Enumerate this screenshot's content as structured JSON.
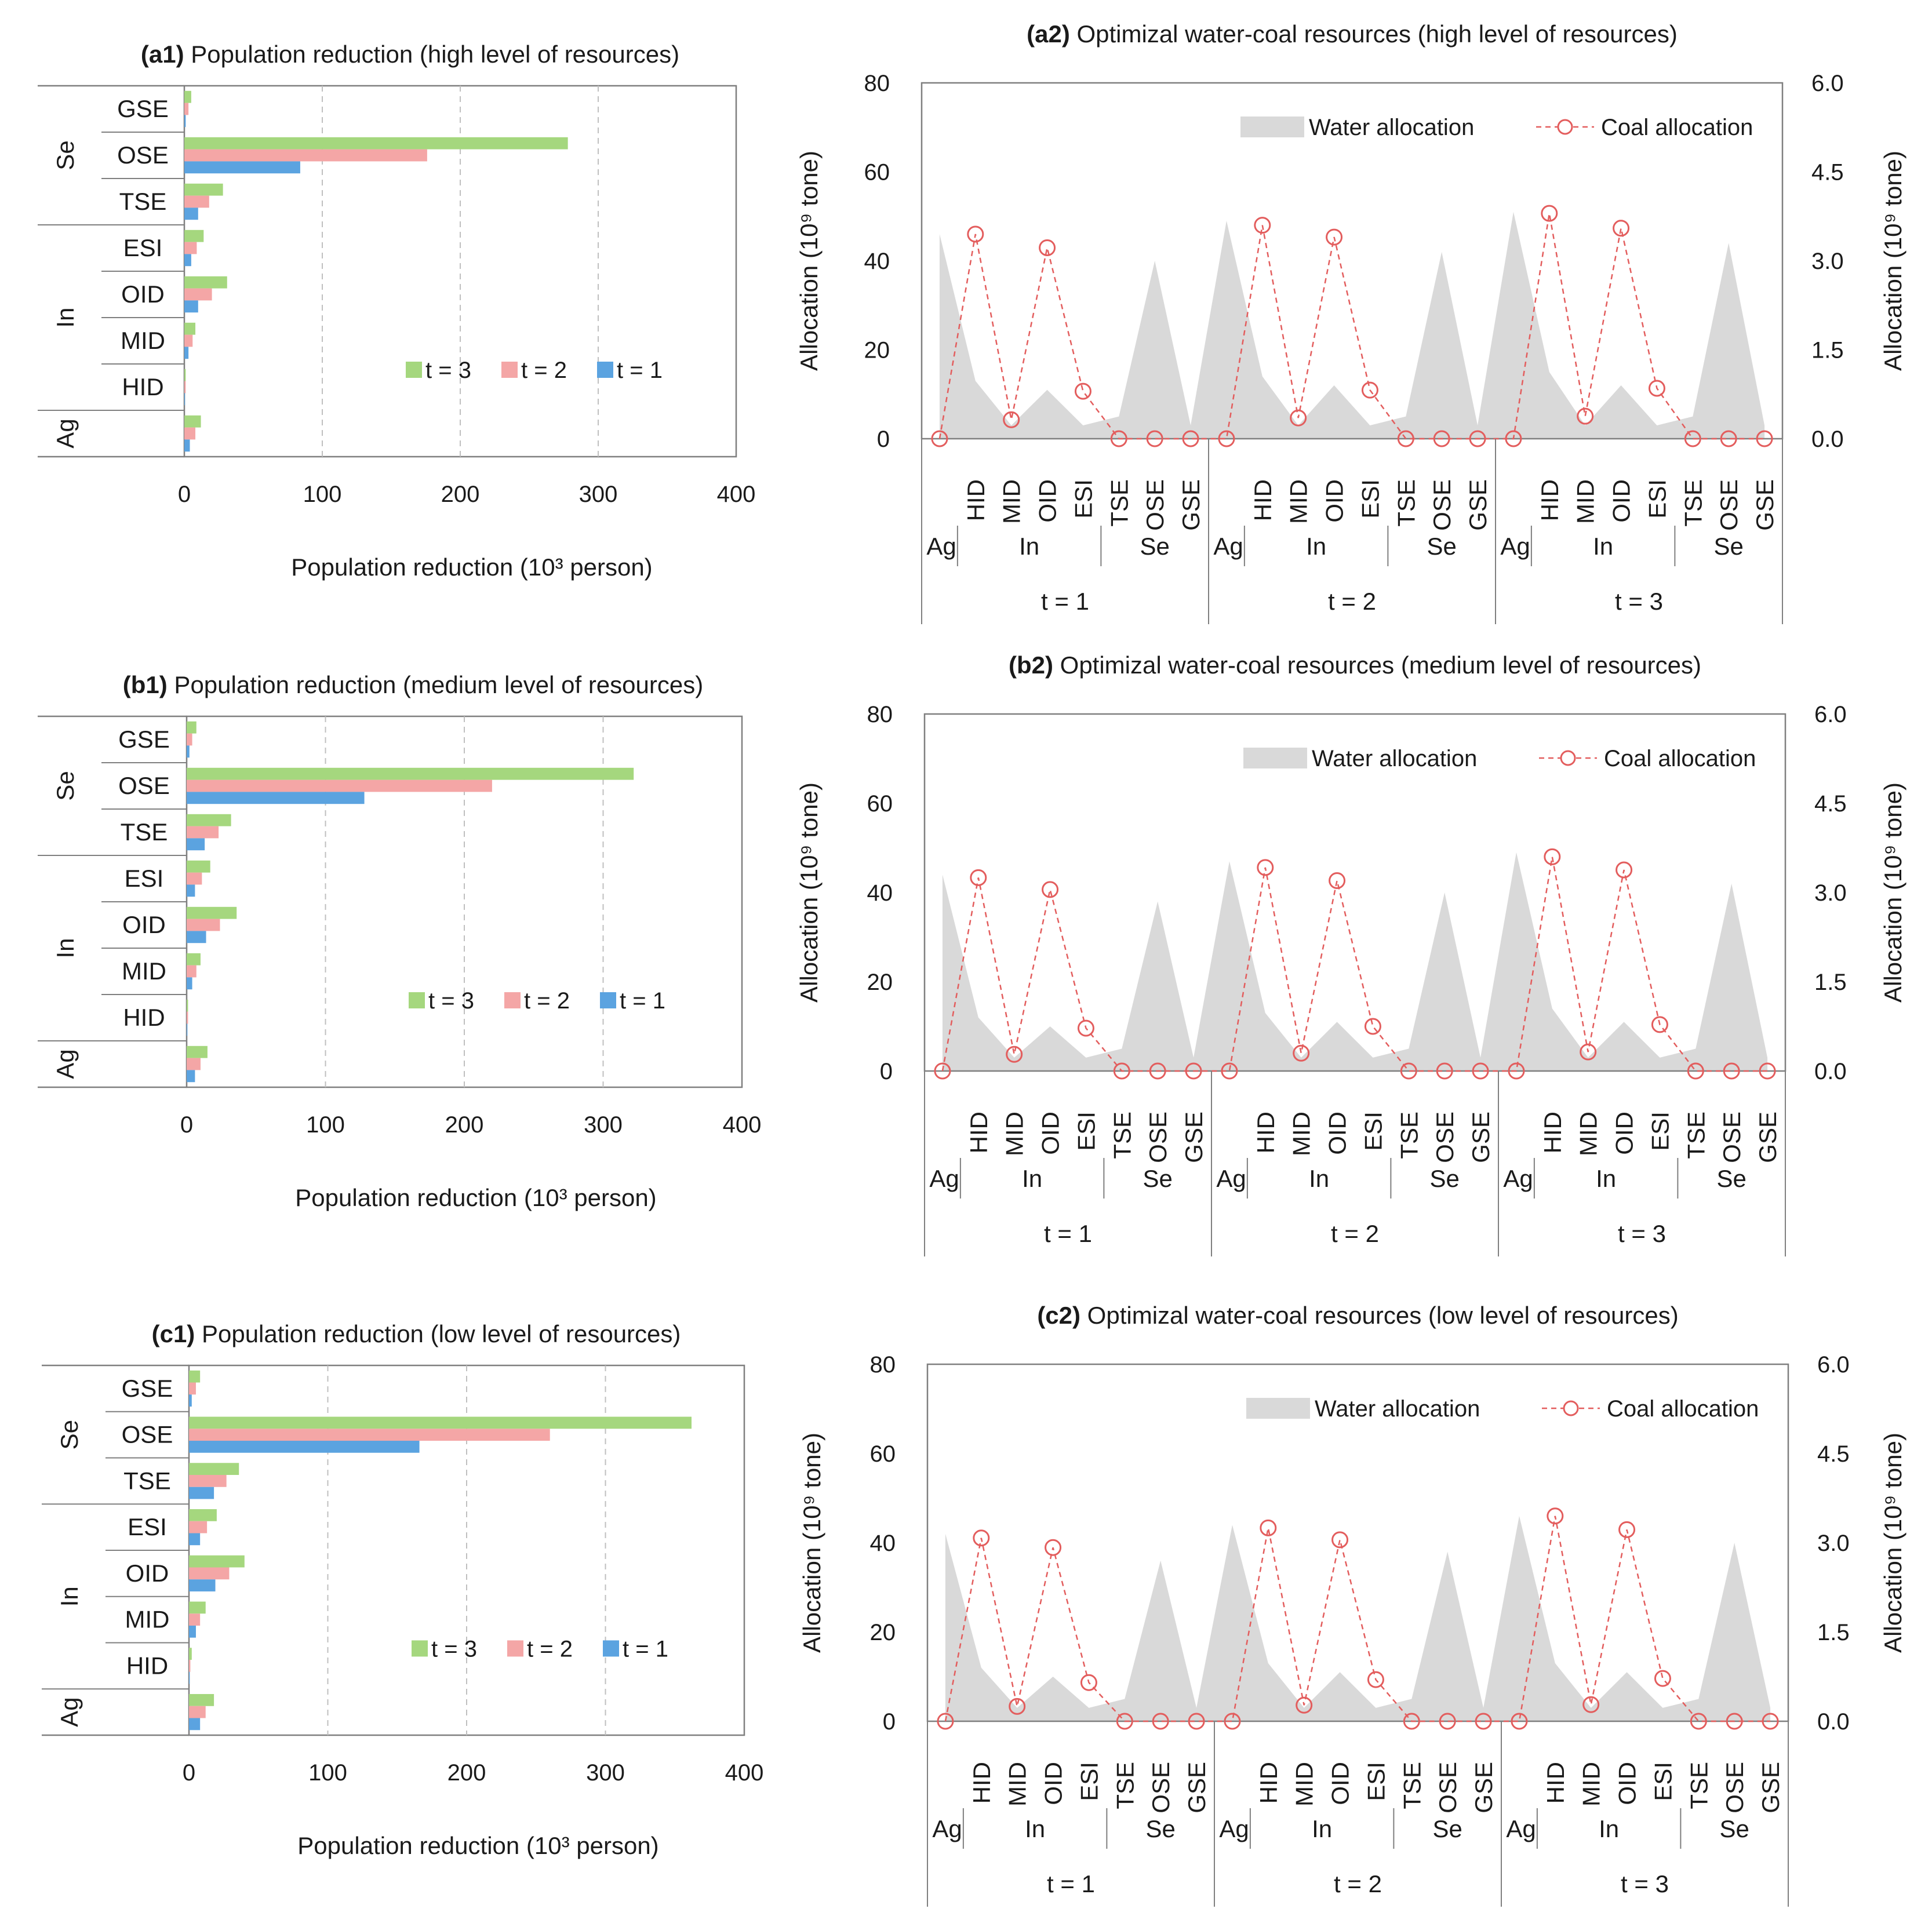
{
  "colors": {
    "t1": "#5ba3e0",
    "t2": "#f4a6a6",
    "t3": "#a5d77e",
    "water": "#d9d9d9",
    "coal": "#e35d5d",
    "axis": "#7f7f7f",
    "grid": "#bfbfbf"
  },
  "chart_data": [
    {
      "id": "a1",
      "type": "bar",
      "orientation": "horizontal",
      "title_bold": "(a1)",
      "title": "Population reduction",
      "subtitle": "(high level of resources)",
      "xlabel": "Population reduction",
      "xlabel_unit": "(10³ person)",
      "xlim": [
        0,
        400
      ],
      "xticks": [
        "0",
        "100",
        "200",
        "300",
        "400"
      ],
      "categories": [
        "GSE",
        "OSE",
        "TSE",
        "ESI",
        "OID",
        "MID",
        "HID",
        ""
      ],
      "groups": [
        {
          "name": "Se",
          "span": [
            0,
            2
          ]
        },
        {
          "name": "In",
          "span": [
            3,
            6
          ]
        },
        {
          "name": "Ag",
          "span": [
            7,
            7
          ]
        }
      ],
      "legend": [
        "t = 3",
        "t = 2",
        "t = 1"
      ],
      "series": [
        {
          "name": "t = 3",
          "values": [
            5,
            278,
            28,
            14,
            31,
            8,
            1,
            12
          ]
        },
        {
          "name": "t = 2",
          "values": [
            3,
            176,
            18,
            9,
            20,
            6,
            1,
            8
          ]
        },
        {
          "name": "t = 1",
          "values": [
            1,
            84,
            10,
            5,
            10,
            3,
            0.5,
            4
          ]
        }
      ]
    },
    {
      "id": "b1",
      "type": "bar",
      "orientation": "horizontal",
      "title_bold": "(b1)",
      "title": "Population reduction",
      "subtitle": "(medium level of resources)",
      "xlabel": "Population reduction",
      "xlabel_unit": "(10³ person)",
      "xlim": [
        0,
        400
      ],
      "xticks": [
        "0",
        "100",
        "200",
        "300",
        "400"
      ],
      "categories": [
        "GSE",
        "OSE",
        "TSE",
        "ESI",
        "OID",
        "MID",
        "HID",
        ""
      ],
      "groups": [
        {
          "name": "Se",
          "span": [
            0,
            2
          ]
        },
        {
          "name": "In",
          "span": [
            3,
            6
          ]
        },
        {
          "name": "Ag",
          "span": [
            7,
            7
          ]
        }
      ],
      "legend": [
        "t = 3",
        "t = 2",
        "t = 1"
      ],
      "series": [
        {
          "name": "t = 3",
          "values": [
            7,
            322,
            32,
            17,
            36,
            10,
            1,
            15
          ]
        },
        {
          "name": "t = 2",
          "values": [
            4,
            220,
            23,
            11,
            24,
            7,
            1,
            10
          ]
        },
        {
          "name": "t = 1",
          "values": [
            2,
            128,
            13,
            6,
            14,
            4,
            0.5,
            6
          ]
        }
      ]
    },
    {
      "id": "c1",
      "type": "bar",
      "orientation": "horizontal",
      "title_bold": "(c1)",
      "title": "Population reduction",
      "subtitle": "(low level of resources)",
      "xlabel": "Population reduction",
      "xlabel_unit": "(10³ person)",
      "xlim": [
        0,
        400
      ],
      "xticks": [
        "0",
        "100",
        "200",
        "300",
        "400"
      ],
      "categories": [
        "GSE",
        "OSE",
        "TSE",
        "ESI",
        "OID",
        "MID",
        "HID",
        ""
      ],
      "groups": [
        {
          "name": "Se",
          "span": [
            0,
            2
          ]
        },
        {
          "name": "In",
          "span": [
            3,
            6
          ]
        },
        {
          "name": "Ag",
          "span": [
            7,
            7
          ]
        }
      ],
      "legend": [
        "t = 3",
        "t = 2",
        "t = 1"
      ],
      "series": [
        {
          "name": "t = 3",
          "values": [
            8,
            362,
            36,
            20,
            40,
            12,
            2,
            18
          ]
        },
        {
          "name": "t = 2",
          "values": [
            5,
            260,
            27,
            13,
            29,
            8,
            1,
            12
          ]
        },
        {
          "name": "t = 1",
          "values": [
            2,
            166,
            18,
            8,
            19,
            5,
            0.5,
            8
          ]
        }
      ]
    },
    {
      "id": "a2",
      "type": "area+line",
      "title_bold": "(a2)",
      "title": "Optimizal water-coal resources",
      "subtitle": "(high level of resources)",
      "ylabel": "Allocation (10⁹ tone)",
      "y2label": "Allocation (10⁹ tone)",
      "ylim": [
        0,
        80
      ],
      "yticks": [
        "0",
        "20",
        "40",
        "60",
        "80"
      ],
      "y2lim": [
        0,
        6
      ],
      "y2ticks": [
        "0.0",
        "1.5",
        "3.0",
        "4.5",
        "6.0"
      ],
      "sectors": [
        "Ag",
        "HID",
        "MID",
        "OID",
        "ESI",
        "TSE",
        "OSE",
        "GSE"
      ],
      "sector_groups": [
        {
          "name": "Ag",
          "span": [
            0,
            0
          ]
        },
        {
          "name": "In",
          "span": [
            1,
            4
          ]
        },
        {
          "name": "Se",
          "span": [
            5,
            7
          ]
        }
      ],
      "periods": [
        "t = 1",
        "t = 2",
        "t = 3"
      ],
      "legend": [
        "Water allocation",
        "Coal allocation"
      ],
      "series": [
        {
          "name": "Water allocation",
          "values": [
            46,
            13,
            3,
            11,
            3,
            5,
            40,
            3,
            49,
            14,
            3,
            12,
            3,
            5,
            42,
            3,
            51,
            15,
            3,
            12,
            3,
            5,
            44,
            3
          ]
        },
        {
          "name": "Coal allocation",
          "values": [
            0,
            3.45,
            0.32,
            3.22,
            0.8,
            0,
            0,
            0,
            0,
            3.6,
            0.35,
            3.4,
            0.82,
            0,
            0,
            0,
            0,
            3.8,
            0.38,
            3.55,
            0.85,
            0,
            0,
            0
          ]
        }
      ]
    },
    {
      "id": "b2",
      "type": "area+line",
      "title_bold": "(b2)",
      "title": "Optimizal water-coal resources",
      "subtitle": "(medium level of resources)",
      "ylabel": "Allocation (10⁹ tone)",
      "y2label": "Allocation (10⁹ tone)",
      "ylim": [
        0,
        80
      ],
      "yticks": [
        "0",
        "20",
        "40",
        "60",
        "80"
      ],
      "y2lim": [
        0,
        6
      ],
      "y2ticks": [
        "0.0",
        "1.5",
        "3.0",
        "4.5",
        "6.0"
      ],
      "sectors": [
        "Ag",
        "HID",
        "MID",
        "OID",
        "ESI",
        "TSE",
        "OSE",
        "GSE"
      ],
      "sector_groups": [
        {
          "name": "Ag",
          "span": [
            0,
            0
          ]
        },
        {
          "name": "In",
          "span": [
            1,
            4
          ]
        },
        {
          "name": "Se",
          "span": [
            5,
            7
          ]
        }
      ],
      "periods": [
        "t = 1",
        "t = 2",
        "t = 3"
      ],
      "legend": [
        "Water allocation",
        "Coal allocation"
      ],
      "series": [
        {
          "name": "Water allocation",
          "values": [
            44,
            12,
            3,
            10,
            3,
            5,
            38,
            3,
            47,
            13,
            3,
            11,
            3,
            5,
            40,
            3,
            49,
            14,
            3,
            11,
            3,
            5,
            42,
            3
          ]
        },
        {
          "name": "Coal allocation",
          "values": [
            0,
            3.25,
            0.28,
            3.05,
            0.72,
            0,
            0,
            0,
            0,
            3.42,
            0.3,
            3.2,
            0.75,
            0,
            0,
            0,
            0,
            3.6,
            0.32,
            3.38,
            0.78,
            0,
            0,
            0
          ]
        }
      ]
    },
    {
      "id": "c2",
      "type": "area+line",
      "title_bold": "(c2)",
      "title": "Optimizal water-coal resources",
      "subtitle": "(low level of resources)",
      "ylabel": "Allocation (10⁹ tone)",
      "y2label": "Allocation (10⁹ tone)",
      "ylim": [
        0,
        80
      ],
      "yticks": [
        "0",
        "20",
        "40",
        "60",
        "80"
      ],
      "y2lim": [
        0,
        6
      ],
      "y2ticks": [
        "0.0",
        "1.5",
        "3.0",
        "4.5",
        "6.0"
      ],
      "sectors": [
        "Ag",
        "HID",
        "MID",
        "OID",
        "ESI",
        "TSE",
        "OSE",
        "GSE"
      ],
      "sector_groups": [
        {
          "name": "Ag",
          "span": [
            0,
            0
          ]
        },
        {
          "name": "In",
          "span": [
            1,
            4
          ]
        },
        {
          "name": "Se",
          "span": [
            5,
            7
          ]
        }
      ],
      "periods": [
        "t = 1",
        "t = 2",
        "t = 3"
      ],
      "legend": [
        "Water allocation",
        "Coal allocation"
      ],
      "series": [
        {
          "name": "Water allocation",
          "values": [
            42,
            12,
            3,
            10,
            3,
            5,
            36,
            3,
            44,
            13,
            3,
            11,
            3,
            5,
            38,
            3,
            46,
            13,
            3,
            11,
            3,
            5,
            40,
            3
          ]
        },
        {
          "name": "Coal allocation",
          "values": [
            0,
            3.08,
            0.25,
            2.92,
            0.65,
            0,
            0,
            0,
            0,
            3.25,
            0.27,
            3.05,
            0.7,
            0,
            0,
            0,
            0,
            3.45,
            0.28,
            3.22,
            0.72,
            0,
            0,
            0
          ]
        }
      ]
    }
  ]
}
